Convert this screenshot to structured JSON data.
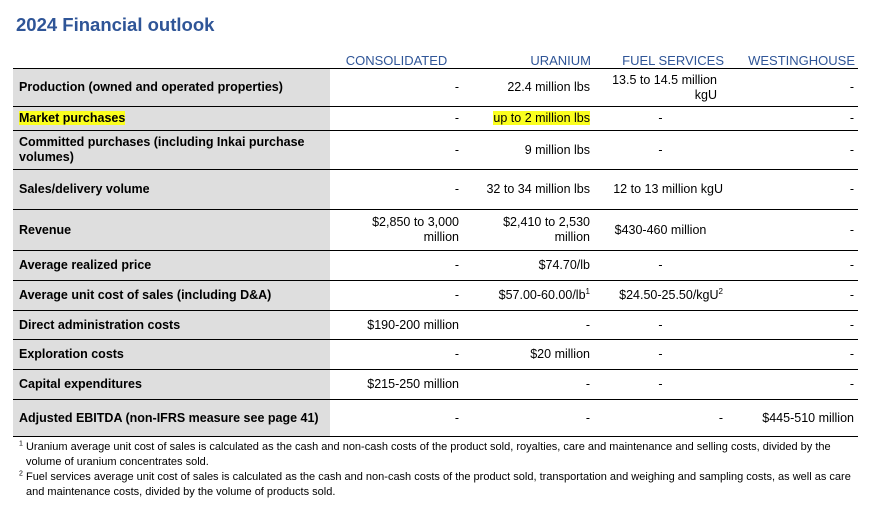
{
  "title": "2024 Financial outlook",
  "columns": {
    "consolidated": "CONSOLIDATED",
    "uranium": "URANIUM",
    "fuel_services": "FUEL SERVICES",
    "westinghouse": "WESTINGHOUSE"
  },
  "rows": [
    {
      "label": "Production (owned and operated properties)",
      "consolidated": "-",
      "uranium": "22.4 million lbs",
      "fuel_services": "13.5 to 14.5 million kgU",
      "westinghouse": "-"
    },
    {
      "label": "Market purchases",
      "consolidated": "-",
      "uranium": "up to 2 million lbs",
      "fuel_services": "-",
      "westinghouse": "-"
    },
    {
      "label": "Committed purchases (including Inkai purchase volumes)",
      "consolidated": "-",
      "uranium": "9 million lbs",
      "fuel_services": "-",
      "westinghouse": "-"
    },
    {
      "label": "Sales/delivery volume",
      "consolidated": "-",
      "uranium": "32 to 34 million lbs",
      "fuel_services": "12 to 13 million kgU",
      "westinghouse": "-"
    },
    {
      "label": "Revenue",
      "consolidated": "$2,850 to 3,000 million",
      "uranium": "$2,410 to 2,530 million",
      "fuel_services": "$430-460 million",
      "westinghouse": "-"
    },
    {
      "label": "Average realized price",
      "consolidated": "-",
      "uranium": "$74.70/lb",
      "fuel_services": "-",
      "westinghouse": "-"
    },
    {
      "label": "Average unit cost of sales (including D&A)",
      "consolidated": "-",
      "uranium": "$57.00-60.00/lb",
      "uranium_sup": "1",
      "fuel_services": "$24.50-25.50/kgU",
      "fuel_services_sup": "2",
      "westinghouse": "-"
    },
    {
      "label": "Direct administration costs",
      "consolidated": "$190-200 million",
      "uranium": "-",
      "fuel_services": "-",
      "westinghouse": "-"
    },
    {
      "label": "Exploration costs",
      "consolidated": "-",
      "uranium": "$20 million",
      "fuel_services": "-",
      "westinghouse": "-"
    },
    {
      "label": "Capital expenditures",
      "consolidated": "$215-250 million",
      "uranium": "-",
      "fuel_services": "-",
      "westinghouse": "-"
    },
    {
      "label": "Adjusted EBITDA (non-IFRS measure see page 41)",
      "consolidated": "-",
      "uranium": "-",
      "fuel_services": "-",
      "westinghouse": "$445-510 million"
    }
  ],
  "highlight_color": "#fbff1f",
  "footnotes": [
    {
      "mark": "1",
      "text": "Uranium average unit cost of sales is calculated as the cash and non-cash costs of the product sold, royalties, care and maintenance and selling costs, divided by the volume of uranium concentrates sold."
    },
    {
      "mark": "2",
      "text": "Fuel services average unit cost of sales is calculated as the cash and non-cash costs of the product sold, transportation and weighing and sampling costs, as well as care and maintenance costs, divided by the volume of products sold."
    }
  ]
}
